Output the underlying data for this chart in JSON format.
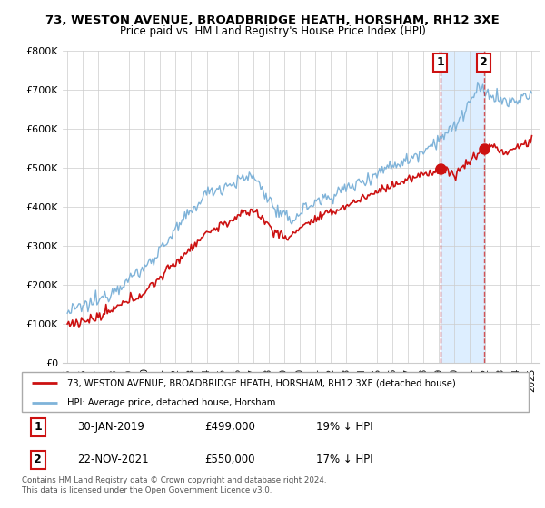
{
  "title": "73, WESTON AVENUE, BROADBRIDGE HEATH, HORSHAM, RH12 3XE",
  "subtitle": "Price paid vs. HM Land Registry's House Price Index (HPI)",
  "legend_line1": "73, WESTON AVENUE, BROADBRIDGE HEATH, HORSHAM, RH12 3XE (detached house)",
  "legend_line2": "HPI: Average price, detached house, Horsham",
  "transaction1_date": "30-JAN-2019",
  "transaction1_price": "£499,000",
  "transaction1_hpi": "19% ↓ HPI",
  "transaction2_date": "22-NOV-2021",
  "transaction2_price": "£550,000",
  "transaction2_hpi": "17% ↓ HPI",
  "footnote": "Contains HM Land Registry data © Crown copyright and database right 2024.\nThis data is licensed under the Open Government Licence v3.0.",
  "hpi_color": "#7fb3d9",
  "price_color": "#cc1111",
  "vline_color": "#cc1111",
  "grid_color": "#cccccc",
  "shade_color": "#ddeeff",
  "ylim": [
    0,
    800000
  ],
  "yticks": [
    0,
    100000,
    200000,
    300000,
    400000,
    500000,
    600000,
    700000,
    800000
  ],
  "ytick_labels": [
    "£0",
    "£100K",
    "£200K",
    "£300K",
    "£400K",
    "£500K",
    "£600K",
    "£700K",
    "£800K"
  ],
  "transaction1_year": 2019.08,
  "transaction1_price_val": 499000,
  "transaction2_year": 2021.9,
  "transaction2_price_val": 550000
}
